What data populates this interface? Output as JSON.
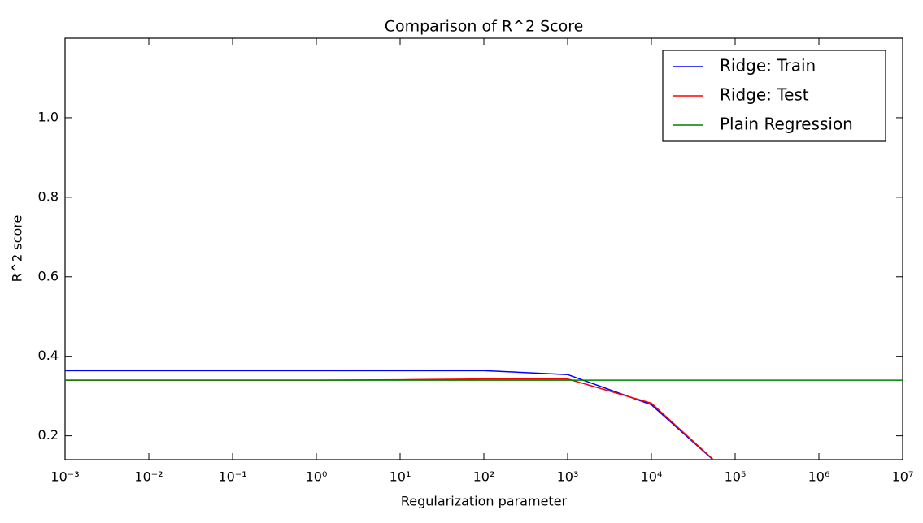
{
  "chart_data": {
    "type": "line",
    "title": "Comparison of R^2 Score",
    "x_label": "Regularization parameter",
    "y_label": "R^2 score",
    "x_scale": "log",
    "legend": "upper right",
    "grid": false,
    "xlim": [
      0.001,
      10000000
    ],
    "ylim": [
      0.14,
      1.2
    ],
    "xticks": [
      {
        "value": 0.001,
        "label": "10⁻³"
      },
      {
        "value": 0.01,
        "label": "10⁻²"
      },
      {
        "value": 0.1,
        "label": "10⁻¹"
      },
      {
        "value": 1,
        "label": "10⁰"
      },
      {
        "value": 10,
        "label": "10¹"
      },
      {
        "value": 100,
        "label": "10²"
      },
      {
        "value": 1000,
        "label": "10³"
      },
      {
        "value": 10000,
        "label": "10⁴"
      },
      {
        "value": 100000,
        "label": "10⁵"
      },
      {
        "value": 1000000,
        "label": "10⁶"
      },
      {
        "value": 10000000,
        "label": "10⁷"
      }
    ],
    "yticks": [
      0.2,
      0.4,
      0.6,
      0.8,
      {
        "value": 1.0,
        "label": "1.0"
      }
    ],
    "series": [
      {
        "name": "Ridge: Train",
        "color": "#0000ff",
        "x": [
          0.001,
          0.01,
          0.1,
          1,
          10,
          100,
          1000,
          10000,
          100000
        ],
        "values": [
          0.364,
          0.364,
          0.364,
          0.364,
          0.364,
          0.364,
          0.354,
          0.278,
          0.09
        ]
      },
      {
        "name": "Ridge: Test",
        "color": "#ff0000",
        "x": [
          0.001,
          0.01,
          0.1,
          1,
          10,
          100,
          1000,
          10000,
          100000
        ],
        "values": [
          0.34,
          0.34,
          0.34,
          0.34,
          0.341,
          0.343,
          0.343,
          0.282,
          0.09
        ]
      },
      {
        "name": "Plain Regression",
        "color": "#008000",
        "x": [
          0.001,
          10000000
        ],
        "values": [
          0.34,
          0.34
        ]
      }
    ]
  }
}
